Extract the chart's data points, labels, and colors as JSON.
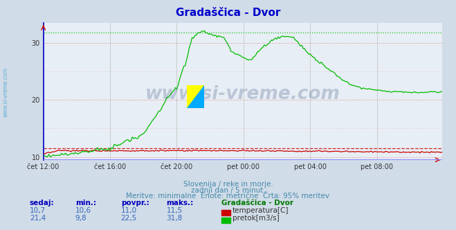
{
  "title": "Gradaščica - Dvor",
  "title_color": "#0000cc",
  "bg_color": "#d0dce8",
  "plot_bg_color": "#e8eef5",
  "grid_color_v": "#cccccc",
  "grid_color_h": "#ffaaaa",
  "watermark": "www.si-vreme.com",
  "watermark_color": "#1a3a6a",
  "watermark_alpha": 0.22,
  "sidebar_text": "www.si-vreme.com",
  "sidebar_color": "#3399cc",
  "xtick_labels": [
    "čet 12:00",
    "čet 16:00",
    "čet 20:00",
    "pet 00:00",
    "pet 04:00",
    "pet 08:00"
  ],
  "xtick_positions": [
    0,
    48,
    96,
    144,
    192,
    240
  ],
  "n_points": 288,
  "ylim": [
    9.5,
    33.5
  ],
  "yticks": [
    10,
    20,
    30
  ],
  "footer_line1": "Slovenija / reke in morje.",
  "footer_line2": "zadnji dan / 5 minut.",
  "footer_line3": "Meritve: minimalne  Enote: metrične  Črta: 95% meritev",
  "footer_color": "#4488aa",
  "table_header": [
    "sedaj:",
    "min.:",
    "povpr.:",
    "maks.:",
    "Gradaščica - Dvor"
  ],
  "table_color": "#0000bb",
  "table_header_color": "#007700",
  "temp_row": [
    "10,7",
    "10,6",
    "11,0",
    "11,5"
  ],
  "flow_row": [
    "21,4",
    "9,8",
    "22,5",
    "31,8"
  ],
  "temp_label": "temperatura[C]",
  "flow_label": "pretok[m3/s]",
  "temp_color": "#cc0000",
  "flow_color": "#00bb00",
  "dashed_red_y": 11.5,
  "dashed_green_y": 31.8,
  "axis_bottom_color": "#8888ff",
  "axis_left_color": "#0000ff"
}
